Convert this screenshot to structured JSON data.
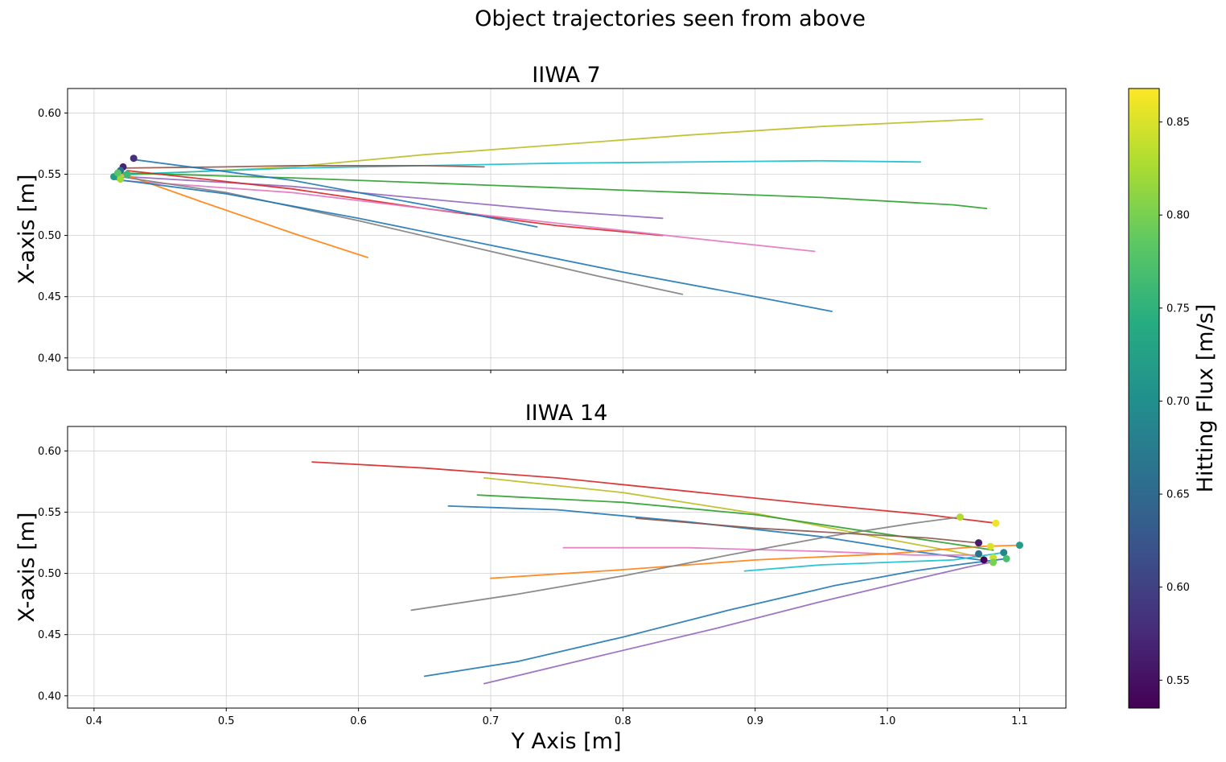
{
  "figure": {
    "title": "Object trajectories seen from above",
    "xlabel": "Y Axis [m]",
    "colorbar_label": "Hitting Flux [m/s]"
  },
  "colorbar": {
    "cmap": "viridis",
    "range": [
      0.535,
      0.868
    ],
    "ticks": [
      "0.55",
      "0.60",
      "0.65",
      "0.70",
      "0.75",
      "0.80",
      "0.85"
    ],
    "tick_values": [
      0.55,
      0.6,
      0.65,
      0.7,
      0.75,
      0.8,
      0.85
    ]
  },
  "chart_data": [
    {
      "type": "line",
      "title": "IIWA 7",
      "xlabel": "",
      "ylabel": "X-axis [m]",
      "xlim": [
        0.38,
        1.135
      ],
      "ylim": [
        0.39,
        0.62
      ],
      "xticks": [
        "0.4",
        "0.5",
        "0.6",
        "0.7",
        "0.8",
        "0.9",
        "1.0",
        "1.1"
      ],
      "xtick_values": [
        0.4,
        0.5,
        0.6,
        0.7,
        0.8,
        0.9,
        1.0,
        1.1
      ],
      "show_xtick_labels": false,
      "yticks": [
        "0.40",
        "0.45",
        "0.50",
        "0.55",
        "0.60"
      ],
      "ytick_values": [
        0.4,
        0.45,
        0.5,
        0.55,
        0.6
      ],
      "grid": true,
      "series": [
        {
          "color": "#bcbd22",
          "x": [
            0.42,
            0.55,
            0.65,
            0.75,
            0.85,
            0.95,
            1.05,
            1.072
          ],
          "y": [
            0.549,
            0.556,
            0.566,
            0.574,
            0.582,
            0.589,
            0.594,
            0.595
          ]
        },
        {
          "color": "#17becf",
          "x": [
            0.425,
            0.55,
            0.65,
            0.75,
            0.85,
            0.95,
            1.025
          ],
          "y": [
            0.55,
            0.555,
            0.557,
            0.559,
            0.56,
            0.561,
            0.56
          ]
        },
        {
          "color": "#2ca02c",
          "x": [
            0.422,
            0.55,
            0.65,
            0.75,
            0.85,
            0.95,
            1.05,
            1.075
          ],
          "y": [
            0.551,
            0.547,
            0.543,
            0.539,
            0.535,
            0.531,
            0.525,
            0.522
          ]
        },
        {
          "color": "#8c564b",
          "x": [
            0.422,
            0.5,
            0.55,
            0.6,
            0.65,
            0.695
          ],
          "y": [
            0.555,
            0.556,
            0.557,
            0.557,
            0.557,
            0.556
          ]
        },
        {
          "color": "#9467bd",
          "x": [
            0.425,
            0.55,
            0.65,
            0.75,
            0.83
          ],
          "y": [
            0.548,
            0.54,
            0.53,
            0.52,
            0.514
          ]
        },
        {
          "color": "#d62728",
          "x": [
            0.425,
            0.55,
            0.65,
            0.75,
            0.83
          ],
          "y": [
            0.553,
            0.538,
            0.522,
            0.508,
            0.5
          ]
        },
        {
          "color": "#e377c2",
          "x": [
            0.418,
            0.55,
            0.65,
            0.75,
            0.85,
            0.945
          ],
          "y": [
            0.545,
            0.535,
            0.522,
            0.51,
            0.498,
            0.487
          ]
        },
        {
          "color": "#1f77b4",
          "x": [
            0.43,
            0.55,
            0.65,
            0.735
          ],
          "y": [
            0.562,
            0.545,
            0.525,
            0.507
          ]
        },
        {
          "color": "#ff7f0e",
          "x": [
            0.42,
            0.48,
            0.55,
            0.607
          ],
          "y": [
            0.551,
            0.528,
            0.502,
            0.482
          ]
        },
        {
          "color": "#7f7f7f",
          "x": [
            0.42,
            0.5,
            0.6,
            0.7,
            0.78,
            0.845
          ],
          "y": [
            0.548,
            0.535,
            0.512,
            0.487,
            0.467,
            0.452
          ]
        },
        {
          "color": "#1f77b4",
          "x": [
            0.415,
            0.5,
            0.6,
            0.7,
            0.8,
            0.9,
            0.958
          ],
          "y": [
            0.546,
            0.534,
            0.514,
            0.492,
            0.47,
            0.45,
            0.438
          ]
        }
      ],
      "markers": [
        {
          "x": 0.43,
          "y": 0.563,
          "c": 0.58
        },
        {
          "x": 0.422,
          "y": 0.556,
          "c": 0.57
        },
        {
          "x": 0.42,
          "y": 0.553,
          "c": 0.66
        },
        {
          "x": 0.415,
          "y": 0.548,
          "c": 0.72
        },
        {
          "x": 0.418,
          "y": 0.551,
          "c": 0.78
        },
        {
          "x": 0.42,
          "y": 0.546,
          "c": 0.82
        },
        {
          "x": 0.425,
          "y": 0.55,
          "c": 0.76
        }
      ]
    },
    {
      "type": "line",
      "title": "IIWA 14",
      "xlabel": "Y Axis [m]",
      "ylabel": "X-axis [m]",
      "xlim": [
        0.38,
        1.135
      ],
      "ylim": [
        0.39,
        0.62
      ],
      "xticks": [
        "0.4",
        "0.5",
        "0.6",
        "0.7",
        "0.8",
        "0.9",
        "1.0",
        "1.1"
      ],
      "xtick_values": [
        0.4,
        0.5,
        0.6,
        0.7,
        0.8,
        0.9,
        1.0,
        1.1
      ],
      "show_xtick_labels": true,
      "yticks": [
        "0.40",
        "0.45",
        "0.50",
        "0.55",
        "0.60"
      ],
      "ytick_values": [
        0.4,
        0.45,
        0.5,
        0.55,
        0.6
      ],
      "grid": true,
      "series": [
        {
          "color": "#d62728",
          "x": [
            0.565,
            0.65,
            0.75,
            0.85,
            0.95,
            1.03,
            1.082
          ],
          "y": [
            0.591,
            0.586,
            0.578,
            0.567,
            0.556,
            0.548,
            0.541
          ]
        },
        {
          "color": "#bcbd22",
          "x": [
            0.695,
            0.8,
            0.9,
            1.0,
            1.05,
            1.075
          ],
          "y": [
            0.578,
            0.566,
            0.549,
            0.528,
            0.518,
            0.512
          ]
        },
        {
          "color": "#2ca02c",
          "x": [
            0.69,
            0.8,
            0.9,
            0.98,
            1.05,
            1.08
          ],
          "y": [
            0.564,
            0.558,
            0.548,
            0.535,
            0.524,
            0.519
          ]
        },
        {
          "color": "#1f77b4",
          "x": [
            0.668,
            0.75,
            0.85,
            0.95,
            1.02,
            1.07
          ],
          "y": [
            0.555,
            0.552,
            0.542,
            0.53,
            0.518,
            0.511
          ]
        },
        {
          "color": "#8c564b",
          "x": [
            0.81,
            0.9,
            0.98,
            1.03,
            1.068
          ],
          "y": [
            0.545,
            0.537,
            0.532,
            0.529,
            0.525
          ]
        },
        {
          "color": "#e377c2",
          "x": [
            0.755,
            0.85,
            0.95,
            1.02,
            1.07
          ],
          "y": [
            0.521,
            0.521,
            0.518,
            0.515,
            0.515
          ]
        },
        {
          "color": "#ff7f0e",
          "x": [
            0.7,
            0.8,
            0.9,
            1.0,
            1.07,
            1.1
          ],
          "y": [
            0.496,
            0.503,
            0.511,
            0.516,
            0.522,
            0.523
          ]
        },
        {
          "color": "#17becf",
          "x": [
            0.892,
            0.95,
            1.0,
            1.05,
            1.088
          ],
          "y": [
            0.502,
            0.507,
            0.509,
            0.511,
            0.517
          ]
        },
        {
          "color": "#7f7f7f",
          "x": [
            0.64,
            0.72,
            0.8,
            0.88,
            0.96,
            1.02,
            1.055
          ],
          "y": [
            0.47,
            0.483,
            0.498,
            0.515,
            0.531,
            0.541,
            0.546
          ]
        },
        {
          "color": "#1f77b4",
          "x": [
            0.65,
            0.72,
            0.8,
            0.88,
            0.96,
            1.02,
            1.06,
            1.09
          ],
          "y": [
            0.416,
            0.428,
            0.448,
            0.47,
            0.49,
            0.502,
            0.508,
            0.512
          ]
        },
        {
          "color": "#9467bd",
          "x": [
            0.695,
            0.78,
            0.87,
            0.95,
            1.02,
            1.06,
            1.078
          ],
          "y": [
            0.41,
            0.432,
            0.455,
            0.477,
            0.495,
            0.505,
            0.509
          ]
        }
      ],
      "markers": [
        {
          "x": 1.055,
          "y": 0.546,
          "c": 0.83
        },
        {
          "x": 1.082,
          "y": 0.541,
          "c": 0.86
        },
        {
          "x": 1.069,
          "y": 0.525,
          "c": 0.56
        },
        {
          "x": 1.078,
          "y": 0.522,
          "c": 0.85
        },
        {
          "x": 1.1,
          "y": 0.523,
          "c": 0.72
        },
        {
          "x": 1.088,
          "y": 0.517,
          "c": 0.69
        },
        {
          "x": 1.069,
          "y": 0.516,
          "c": 0.66
        },
        {
          "x": 1.08,
          "y": 0.513,
          "c": 0.84
        },
        {
          "x": 1.09,
          "y": 0.512,
          "c": 0.77
        },
        {
          "x": 1.073,
          "y": 0.511,
          "c": 0.54
        },
        {
          "x": 1.08,
          "y": 0.509,
          "c": 0.8
        }
      ]
    }
  ]
}
